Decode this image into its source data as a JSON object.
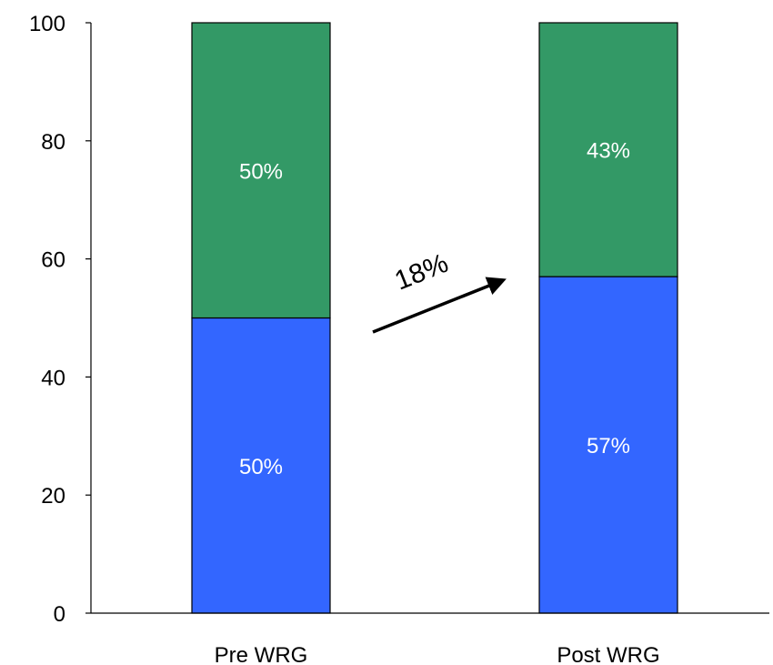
{
  "chart_data": {
    "type": "bar",
    "stacked": true,
    "categories": [
      "Pre WRG",
      "Post WRG"
    ],
    "series": [
      {
        "values": [
          50,
          57
        ],
        "labels": [
          "50%",
          "57%"
        ],
        "color": "#3366ff"
      },
      {
        "values": [
          50,
          43
        ],
        "labels": [
          "50%",
          "43%"
        ],
        "color": "#339966"
      }
    ],
    "ylim": [
      0,
      100
    ],
    "yticks": [
      0,
      20,
      40,
      60,
      80,
      100
    ],
    "xlabel": "",
    "ylabel": "",
    "title": "",
    "grid": false,
    "annotation": {
      "text": "18%",
      "from_category": "Pre WRG",
      "to_category": "Post WRG"
    }
  }
}
